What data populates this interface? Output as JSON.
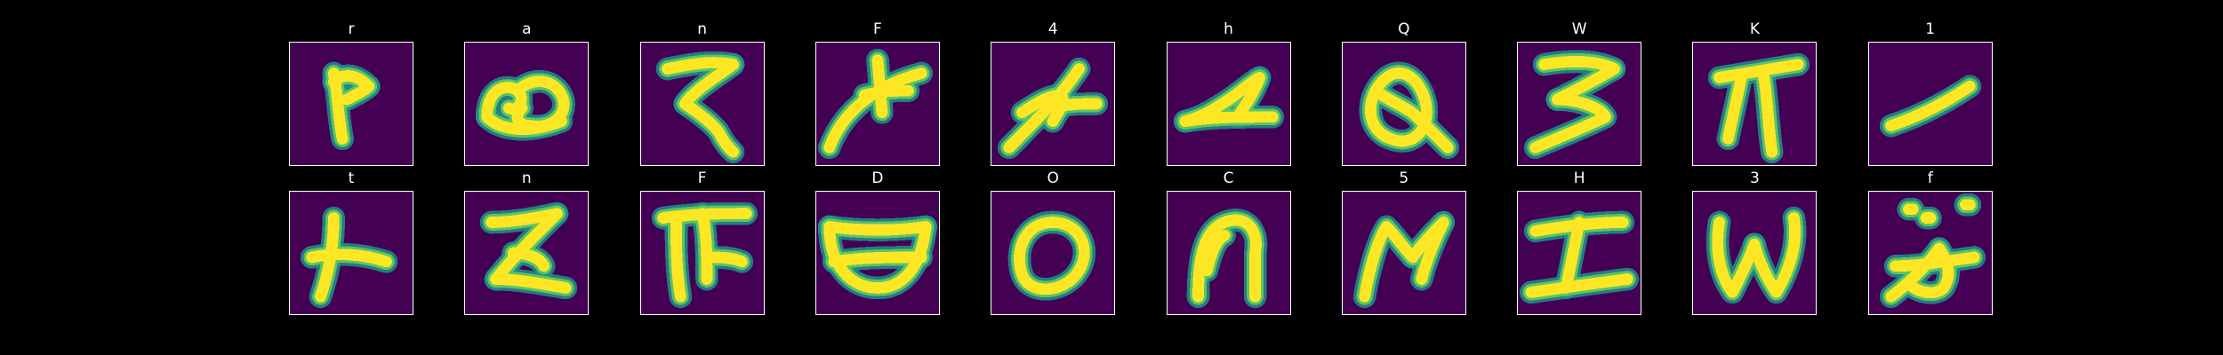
{
  "colors": {
    "background": "#000000",
    "image_background": "#440154",
    "stroke_edge": "#21918c",
    "stroke_mid": "#5ec962",
    "stroke_core": "#fde725",
    "frame": "#ffffff",
    "title_text": "#ffffff"
  },
  "grid": {
    "rows": 2,
    "columns": 10,
    "images": [
      {
        "label": "r",
        "icon": "handwritten-r-sample"
      },
      {
        "label": "a",
        "icon": "handwritten-a-sample"
      },
      {
        "label": "n",
        "icon": "handwritten-n-sample"
      },
      {
        "label": "F",
        "icon": "handwritten-F-sample"
      },
      {
        "label": "4",
        "icon": "handwritten-4-sample"
      },
      {
        "label": "h",
        "icon": "handwritten-h-sample"
      },
      {
        "label": "Q",
        "icon": "handwritten-Q-sample"
      },
      {
        "label": "W",
        "icon": "handwritten-W-sample"
      },
      {
        "label": "K",
        "icon": "handwritten-K-sample"
      },
      {
        "label": "1",
        "icon": "handwritten-1-sample"
      },
      {
        "label": "t",
        "icon": "handwritten-t-sample"
      },
      {
        "label": "n",
        "icon": "handwritten-n-sample"
      },
      {
        "label": "F",
        "icon": "handwritten-F-sample"
      },
      {
        "label": "D",
        "icon": "handwritten-D-sample"
      },
      {
        "label": "O",
        "icon": "handwritten-O-sample"
      },
      {
        "label": "C",
        "icon": "handwritten-C-sample"
      },
      {
        "label": "5",
        "icon": "handwritten-5-sample"
      },
      {
        "label": "H",
        "icon": "handwritten-H-sample"
      },
      {
        "label": "3",
        "icon": "handwritten-3-sample"
      },
      {
        "label": "f",
        "icon": "handwritten-f-sample"
      }
    ]
  }
}
